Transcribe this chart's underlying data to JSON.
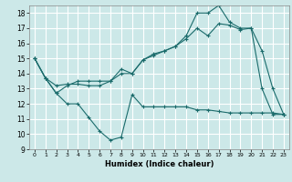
{
  "xlabel": "Humidex (Indice chaleur)",
  "background_color": "#cce8e8",
  "grid_color": "#ffffff",
  "line_color": "#1a6b6b",
  "xlim": [
    -0.5,
    23.5
  ],
  "ylim": [
    9,
    18.5
  ],
  "yticks": [
    9,
    10,
    11,
    12,
    13,
    14,
    15,
    16,
    17,
    18
  ],
  "xticks": [
    0,
    1,
    2,
    3,
    4,
    5,
    6,
    7,
    8,
    9,
    10,
    11,
    12,
    13,
    14,
    15,
    16,
    17,
    18,
    19,
    20,
    21,
    22,
    23
  ],
  "series1_x": [
    0,
    1,
    2,
    3,
    4,
    5,
    6,
    7,
    8,
    9,
    10,
    11,
    12,
    13,
    14,
    15,
    16,
    17,
    18,
    19,
    20,
    21,
    22,
    23
  ],
  "series1_y": [
    15.0,
    13.7,
    12.7,
    12.0,
    12.0,
    11.1,
    10.2,
    9.6,
    9.8,
    12.6,
    11.8,
    11.8,
    11.8,
    11.8,
    11.8,
    11.6,
    11.6,
    11.5,
    11.4,
    11.4,
    11.4,
    11.4,
    11.4,
    11.3
  ],
  "series2_x": [
    0,
    1,
    2,
    3,
    4,
    5,
    6,
    7,
    8,
    9,
    10,
    11,
    12,
    13,
    14,
    15,
    16,
    17,
    18,
    19,
    20,
    21,
    22,
    23
  ],
  "series2_y": [
    15.0,
    13.7,
    12.7,
    13.2,
    13.5,
    13.5,
    13.5,
    13.5,
    14.0,
    14.0,
    14.9,
    15.3,
    15.5,
    15.8,
    16.5,
    18.0,
    18.0,
    18.5,
    17.4,
    17.0,
    17.0,
    15.5,
    13.0,
    11.3
  ],
  "series3_x": [
    0,
    1,
    2,
    3,
    4,
    5,
    6,
    7,
    8,
    9,
    10,
    11,
    12,
    13,
    14,
    15,
    16,
    17,
    18,
    19,
    20,
    21,
    22,
    23
  ],
  "series3_y": [
    15.0,
    13.7,
    13.2,
    13.3,
    13.3,
    13.2,
    13.2,
    13.5,
    14.3,
    14.0,
    14.9,
    15.2,
    15.5,
    15.8,
    16.3,
    17.0,
    16.5,
    17.3,
    17.2,
    16.9,
    17.0,
    13.0,
    11.3,
    11.3
  ]
}
